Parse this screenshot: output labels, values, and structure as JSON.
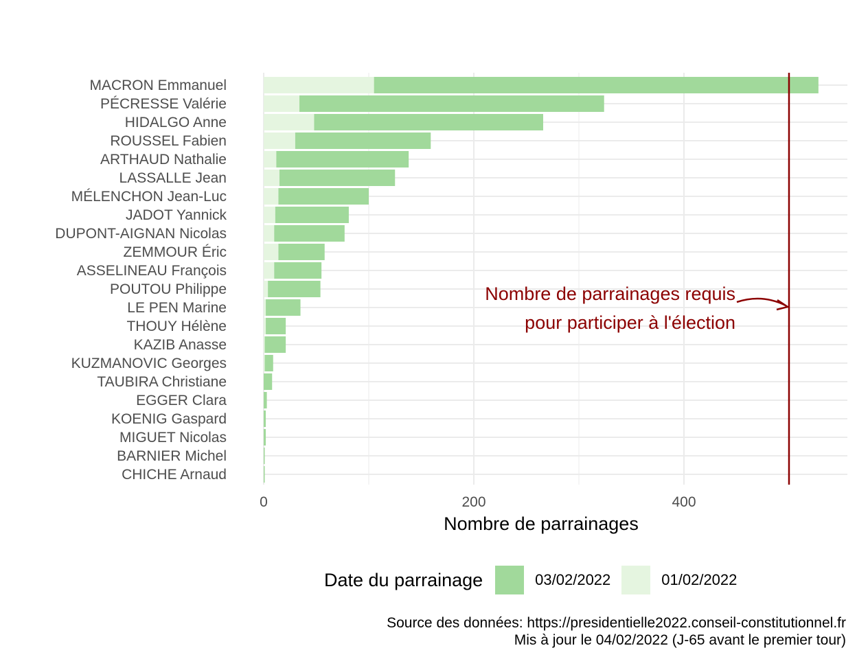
{
  "chart_data": {
    "type": "bar",
    "orientation": "horizontal",
    "stacked": true,
    "categories": [
      "MACRON Emmanuel",
      "PÉCRESSE Valérie",
      "HIDALGO Anne",
      "ROUSSEL Fabien",
      "ARTHAUD Nathalie",
      "LASSALLE Jean",
      "MÉLENCHON Jean-Luc",
      "JADOT Yannick",
      "DUPONT-AIGNAN Nicolas",
      "ZEMMOUR Éric",
      "ASSELINEAU François",
      "POUTOU Philippe",
      "LE PEN Marine",
      "THOUY Hélène",
      "KAZIB Anasse",
      "KUZMANOVIC Georges",
      "TAUBIRA Christiane",
      "EGGER Clara",
      "KOENIG Gaspard",
      "MIGUET Nicolas",
      "BARNIER Michel",
      "CHICHE Arnaud"
    ],
    "series": [
      {
        "name": "01/02/2022",
        "color": "#e5f5e0",
        "values": [
          105,
          34,
          48,
          30,
          12,
          15,
          14,
          11,
          10,
          14,
          10,
          4,
          2,
          2,
          1,
          1,
          0,
          0,
          0,
          0,
          0,
          0
        ]
      },
      {
        "name": "03/02/2022",
        "color": "#a1d99b",
        "values": [
          423,
          290,
          218,
          129,
          126,
          110,
          86,
          70,
          67,
          44,
          45,
          50,
          33,
          19,
          20,
          8,
          8,
          3,
          2,
          2,
          1,
          1
        ]
      }
    ],
    "xlabel": "Nombre de parrainages",
    "ylabel": "",
    "xlim": [
      0,
      555
    ],
    "xticks": [
      0,
      200,
      400
    ],
    "grid": true,
    "reference_line": {
      "value": 500,
      "color": "#8b0000",
      "label_line1": "Nombre de parrainages requis",
      "label_line2": "pour participer à l'élection"
    },
    "legend": {
      "title": "Date du parrainage",
      "position": "bottom",
      "entries": [
        "03/02/2022",
        "01/02/2022"
      ]
    }
  },
  "legend": {
    "title": "Date du parrainage",
    "items": [
      {
        "label": "03/02/2022",
        "color": "#a1d99b"
      },
      {
        "label": "01/02/2022",
        "color": "#e5f5e0"
      }
    ]
  },
  "caption": {
    "line1": "Source des données: https://presidentielle2022.conseil-constitutionnel.fr",
    "line2": "Mis à jour le 04/02/2022 (J-65 avant le premier tour)"
  }
}
